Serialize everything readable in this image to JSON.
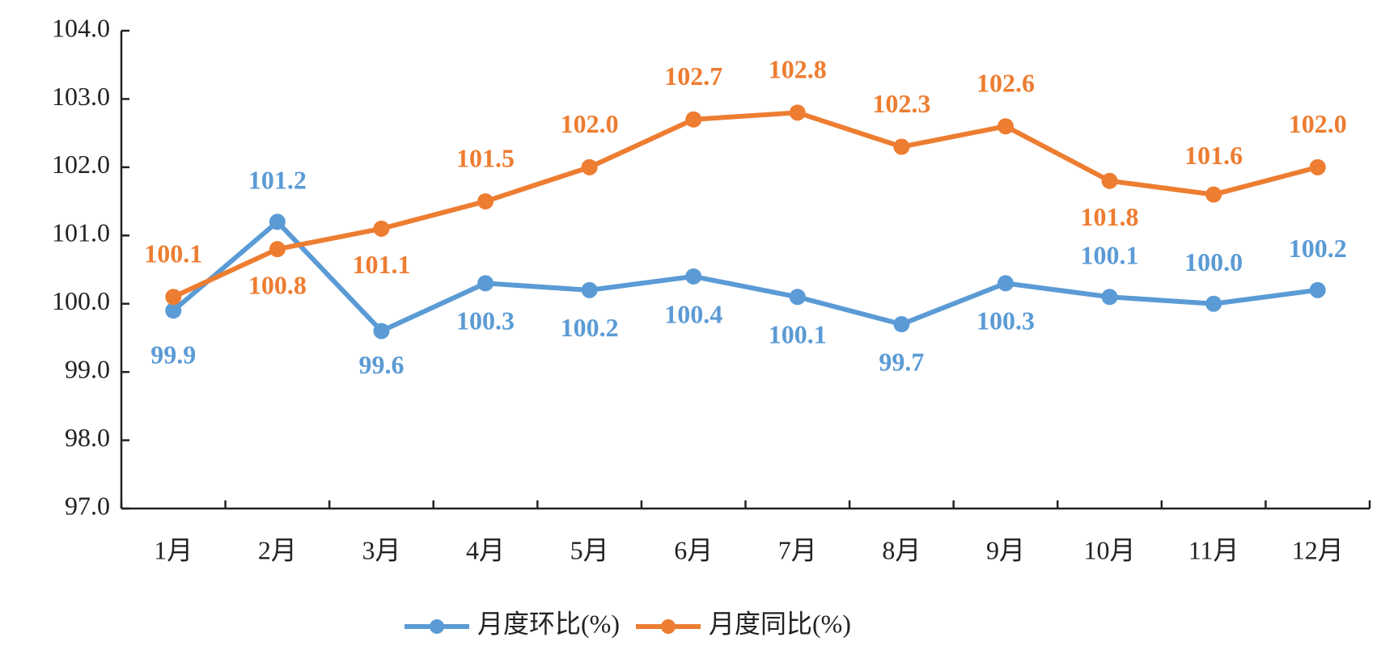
{
  "chart_data": {
    "type": "line",
    "categories": [
      "1月",
      "2月",
      "3月",
      "4月",
      "5月",
      "6月",
      "7月",
      "8月",
      "9月",
      "10月",
      "11月",
      "12月"
    ],
    "series": [
      {
        "name": "月度环比(%)",
        "color": "#5b9bd5",
        "values": [
          99.9,
          101.2,
          99.6,
          100.3,
          100.2,
          100.4,
          100.1,
          99.7,
          100.3,
          100.1,
          100.0,
          100.2
        ],
        "value_labels": [
          "99.9",
          "101.2",
          "99.6",
          "100.3",
          "100.2",
          "100.4",
          "100.1",
          "99.7",
          "100.3",
          "100.1",
          "100.0",
          "100.2"
        ]
      },
      {
        "name": "月度同比(%)",
        "color": "#ed7d31",
        "values": [
          100.1,
          100.8,
          101.1,
          101.5,
          102.0,
          102.7,
          102.8,
          102.3,
          102.6,
          101.8,
          101.6,
          102.0
        ],
        "value_labels": [
          "100.1",
          "100.8",
          "101.1",
          "101.5",
          "102.0",
          "102.7",
          "102.8",
          "102.3",
          "102.6",
          "101.8",
          "101.6",
          "102.0"
        ]
      }
    ],
    "ylim": [
      97,
      104
    ],
    "yticks": [
      {
        "value": 97,
        "label": "97.0"
      },
      {
        "value": 98,
        "label": "98.0"
      },
      {
        "value": 99,
        "label": "99.0"
      },
      {
        "value": 100,
        "label": "100.0"
      },
      {
        "value": 101,
        "label": "101.0"
      },
      {
        "value": 102,
        "label": "102.0"
      },
      {
        "value": 103,
        "label": "103.0"
      },
      {
        "value": 104,
        "label": "104.0"
      }
    ],
    "grid": false,
    "legend": "bottom"
  }
}
